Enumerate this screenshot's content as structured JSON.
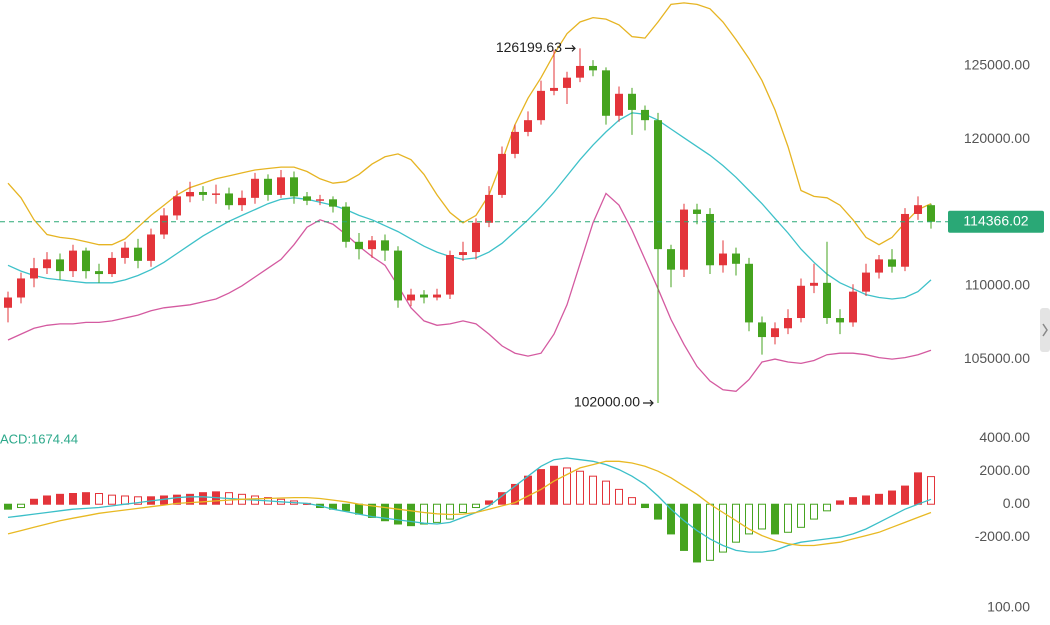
{
  "chart_data": [
    {
      "type": "candlestick",
      "up_color": "#e3343a",
      "down_color": "#45a31f",
      "open": [
        108500,
        109200,
        110500,
        111200,
        111800,
        111000,
        112400,
        111000,
        110800,
        111900,
        112600,
        111700,
        113500,
        114800,
        116100,
        116400,
        116200,
        116300,
        115500,
        116000,
        117300,
        116200,
        117400,
        116100,
        115800,
        115900,
        115400,
        113000,
        112500,
        113100,
        112400,
        109000,
        109400,
        109200,
        109400,
        112100,
        112300,
        114300,
        116200,
        119000,
        120500,
        121300,
        123300,
        123500,
        124200,
        125000,
        124700,
        121600,
        123100,
        122000,
        121300,
        112500,
        111100,
        115200,
        114900,
        111400,
        112200,
        111500,
        107500,
        106500,
        107100,
        107800,
        110000,
        110200,
        107800,
        107500,
        109600,
        110900,
        111800,
        111300,
        114900,
        115500
      ],
      "high": [
        109600,
        110900,
        111900,
        112300,
        112200,
        112800,
        112600,
        111500,
        112300,
        113000,
        113200,
        113900,
        115300,
        116500,
        117100,
        116800,
        116900,
        116700,
        116500,
        117700,
        117600,
        117900,
        117800,
        116400,
        116200,
        116100,
        115700,
        113600,
        113400,
        113500,
        112700,
        109800,
        109700,
        109800,
        112400,
        113000,
        114600,
        116800,
        119500,
        121000,
        121900,
        124000,
        126100,
        124600,
        126199.63,
        125400,
        124900,
        123600,
        123500,
        122300,
        121800,
        112800,
        115600,
        115600,
        115300,
        113100,
        112600,
        111900,
        107900,
        107500,
        108400,
        110500,
        111500,
        113000,
        108400,
        110100,
        111500,
        112100,
        112500,
        115300,
        116100,
        115600
      ],
      "low": [
        107500,
        108800,
        109900,
        110800,
        110400,
        110600,
        110500,
        110200,
        110600,
        111500,
        111200,
        111300,
        113200,
        114500,
        115700,
        115800,
        115600,
        115200,
        115100,
        115600,
        115800,
        116000,
        115600,
        115500,
        115500,
        115000,
        112600,
        111800,
        111900,
        111700,
        108500,
        108600,
        108800,
        109000,
        109100,
        111700,
        111800,
        114000,
        116000,
        118700,
        120200,
        121000,
        123000,
        122400,
        123900,
        124300,
        121000,
        121200,
        120300,
        120600,
        102000,
        109900,
        110600,
        114200,
        110800,
        110900,
        110700,
        106900,
        105300,
        106000,
        106700,
        107500,
        109500,
        107400,
        106700,
        107200,
        109300,
        110500,
        110900,
        111000,
        114500,
        113900
      ],
      "close": [
        109200,
        110500,
        111200,
        111800,
        111000,
        112400,
        111000,
        110800,
        111900,
        112600,
        111700,
        113500,
        114800,
        116100,
        116400,
        116200,
        116300,
        115500,
        116000,
        117300,
        116200,
        117400,
        116100,
        115800,
        115900,
        115400,
        113000,
        112500,
        113100,
        112400,
        109000,
        109400,
        109200,
        109400,
        112100,
        112300,
        114300,
        116200,
        119000,
        120500,
        121300,
        123300,
        123500,
        124200,
        125000,
        124700,
        121600,
        123100,
        122000,
        121300,
        112500,
        111100,
        115200,
        114900,
        111400,
        112200,
        111500,
        107500,
        106500,
        107100,
        107800,
        110000,
        110200,
        107800,
        107500,
        109600,
        110900,
        111800,
        111300,
        114900,
        115500,
        114366.02
      ],
      "series": [
        {
          "color": "#e6b422",
          "values": [
            117000,
            116000,
            114500,
            113500,
            113300,
            113200,
            113000,
            112800,
            112800,
            113200,
            114000,
            114800,
            115500,
            116200,
            116700,
            117000,
            117300,
            117500,
            117700,
            117900,
            118000,
            118100,
            118100,
            117800,
            117300,
            117000,
            117100,
            117600,
            118300,
            118800,
            119000,
            118600,
            117600,
            116200,
            115000,
            114300,
            114800,
            116200,
            118500,
            121000,
            122800,
            124200,
            125800,
            127200,
            128000,
            128300,
            128200,
            127800,
            127000,
            126900,
            128000,
            129200,
            129300,
            129200,
            128900,
            128000,
            126800,
            125500,
            124000,
            122000,
            119500,
            116500,
            116100,
            116000,
            115500,
            114500,
            113300,
            112800,
            113300,
            114300,
            115200,
            115600
          ]
        },
        {
          "color": "#3ec1c9",
          "values": [
            111400,
            111000,
            110700,
            110500,
            110400,
            110300,
            110200,
            110200,
            110200,
            110400,
            110700,
            111100,
            111600,
            112200,
            112800,
            113400,
            113900,
            114400,
            114800,
            115200,
            115600,
            115900,
            116000,
            115900,
            115700,
            115500,
            115200,
            114800,
            114500,
            114100,
            113700,
            113200,
            112700,
            112300,
            112000,
            111800,
            111900,
            112300,
            112900,
            113700,
            114500,
            115400,
            116400,
            117500,
            118600,
            119600,
            120500,
            121300,
            121800,
            121700,
            121300,
            120700,
            120100,
            119500,
            118900,
            118200,
            117400,
            116500,
            115600,
            114600,
            113600,
            112500,
            111600,
            110800,
            110200,
            109800,
            109400,
            109200,
            109100,
            109200,
            109600,
            110400
          ]
        },
        {
          "color": "#d45aa0",
          "values": [
            106300,
            106700,
            107100,
            107300,
            107400,
            107400,
            107500,
            107500,
            107600,
            107800,
            108000,
            108300,
            108500,
            108600,
            108700,
            108900,
            109100,
            109500,
            110000,
            110600,
            111200,
            111800,
            112800,
            114000,
            114500,
            114200,
            113500,
            112700,
            112000,
            111400,
            110000,
            108500,
            107600,
            107300,
            107400,
            107600,
            107400,
            106700,
            105900,
            105400,
            105200,
            105400,
            106700,
            108700,
            111500,
            114300,
            116300,
            115500,
            113800,
            111800,
            109800,
            107700,
            106000,
            104500,
            103500,
            102900,
            102800,
            103600,
            104800,
            105000,
            104800,
            104700,
            104900,
            105300,
            105400,
            105400,
            105300,
            105100,
            105000,
            105100,
            105300,
            105600
          ]
        }
      ],
      "max_marker": {
        "index": 44,
        "value": 126199.63,
        "label": "126199.63"
      },
      "min_marker": {
        "index": 50,
        "value": 102000,
        "label": "102000.00"
      },
      "last_price": {
        "value": 114366.02,
        "label": "114366.02",
        "color": "#2aa876"
      },
      "ylim": [
        100500,
        129500
      ],
      "yticks": [
        {
          "value": 125000,
          "label": "125000.00"
        },
        {
          "value": 120000,
          "label": "120000.00"
        },
        {
          "value": 110000,
          "label": "110000.00"
        },
        {
          "value": 105000,
          "label": "105000.00"
        }
      ]
    },
    {
      "type": "macd",
      "label": "ACD:1674.44",
      "up_color": "#e3343a",
      "down_color": "#45a31f",
      "values": [
        -300,
        -200,
        300,
        500,
        600,
        650,
        700,
        650,
        550,
        500,
        450,
        450,
        500,
        550,
        600,
        700,
        750,
        700,
        600,
        500,
        400,
        300,
        200,
        50,
        -200,
        -300,
        -400,
        -600,
        -800,
        -1000,
        -1200,
        -1300,
        -1200,
        -1100,
        -900,
        -500,
        -200,
        200,
        700,
        1200,
        1700,
        2100,
        2300,
        2200,
        2000,
        1700,
        1400,
        900,
        400,
        -200,
        -900,
        -1800,
        -2800,
        -3500,
        -3400,
        -2900,
        -2300,
        -1800,
        -1500,
        -1800,
        -1700,
        -1400,
        -900,
        -400,
        200,
        400,
        500,
        600,
        800,
        1100,
        1900,
        1674.44
      ],
      "series": [
        {
          "color": "#3bbfc8",
          "values": [
            -800,
            -700,
            -600,
            -500,
            -400,
            -300,
            -250,
            -200,
            -100,
            0,
            100,
            200,
            300,
            400,
            450,
            450,
            400,
            350,
            300,
            250,
            200,
            150,
            100,
            50,
            -100,
            -300,
            -450,
            -600,
            -750,
            -850,
            -950,
            -1050,
            -1150,
            -1200,
            -1100,
            -800,
            -500,
            -100,
            500,
            1100,
            1700,
            2300,
            2700,
            2800,
            2700,
            2600,
            2400,
            2100,
            1700,
            1200,
            500,
            -300,
            -1000,
            -1600,
            -2100,
            -2500,
            -2800,
            -2900,
            -2900,
            -2800,
            -2500,
            -2300,
            -2200,
            -2100,
            -2000,
            -1800,
            -1500,
            -1100,
            -700,
            -300,
            0,
            300
          ]
        },
        {
          "color": "#e8b923",
          "values": [
            -1800,
            -1600,
            -1400,
            -1200,
            -1000,
            -850,
            -700,
            -550,
            -450,
            -350,
            -250,
            -150,
            -50,
            50,
            100,
            150,
            200,
            250,
            300,
            330,
            350,
            380,
            400,
            400,
            350,
            250,
            150,
            0,
            -100,
            -200,
            -300,
            -400,
            -500,
            -580,
            -620,
            -600,
            -500,
            -300,
            -100,
            100,
            500,
            900,
            1400,
            1800,
            2200,
            2400,
            2600,
            2600,
            2500,
            2300,
            2000,
            1600,
            1100,
            600,
            0,
            -500,
            -1000,
            -1500,
            -1900,
            -2200,
            -2400,
            -2500,
            -2500,
            -2400,
            -2300,
            -2100,
            -1900,
            -1700,
            -1400,
            -1100,
            -800,
            -500
          ]
        }
      ],
      "ylim": [
        -5200,
        4500
      ],
      "yticks": [
        {
          "value": 4000,
          "label": "4000.00"
        },
        {
          "value": 2000,
          "label": "2000.00"
        },
        {
          "value": 0,
          "label": "0.00"
        },
        {
          "value": -2000,
          "label": "-2000.00"
        }
      ]
    },
    {
      "type": "indicator",
      "ylim": [
        0,
        115
      ],
      "yticks": [
        {
          "value": 100,
          "label": "100.00"
        }
      ]
    }
  ]
}
